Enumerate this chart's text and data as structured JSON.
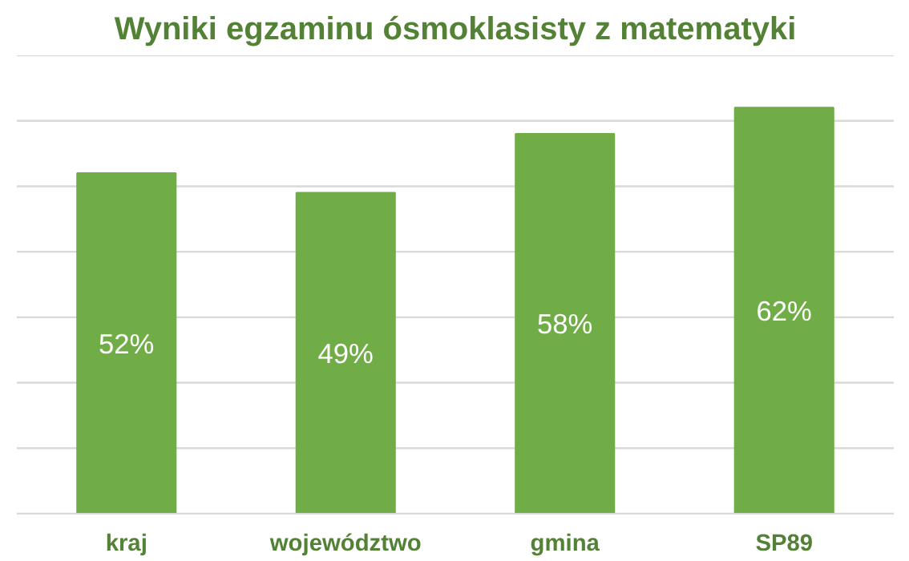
{
  "chart_data": {
    "type": "bar",
    "title": "Wyniki egzaminu ósmoklasisty z matematyki",
    "categories": [
      "kraj",
      "województwo",
      "gmina",
      "SP89"
    ],
    "values": [
      52,
      49,
      58,
      62
    ],
    "color": "#70ad47",
    "value_labels": [
      "52%",
      "49%",
      "58%",
      "62%"
    ],
    "ylim": [
      0,
      70
    ],
    "yticks": [
      {
        "value": 0,
        "label": null
      },
      {
        "value": 10,
        "label": null
      },
      {
        "value": 20,
        "label": null
      },
      {
        "value": 30,
        "label": null
      },
      {
        "value": 40,
        "label": null
      },
      {
        "value": 50,
        "label": null
      },
      {
        "value": 60,
        "label": null
      },
      {
        "value": 70,
        "label": null
      }
    ],
    "tick_labels": "x",
    "grid": "y"
  }
}
